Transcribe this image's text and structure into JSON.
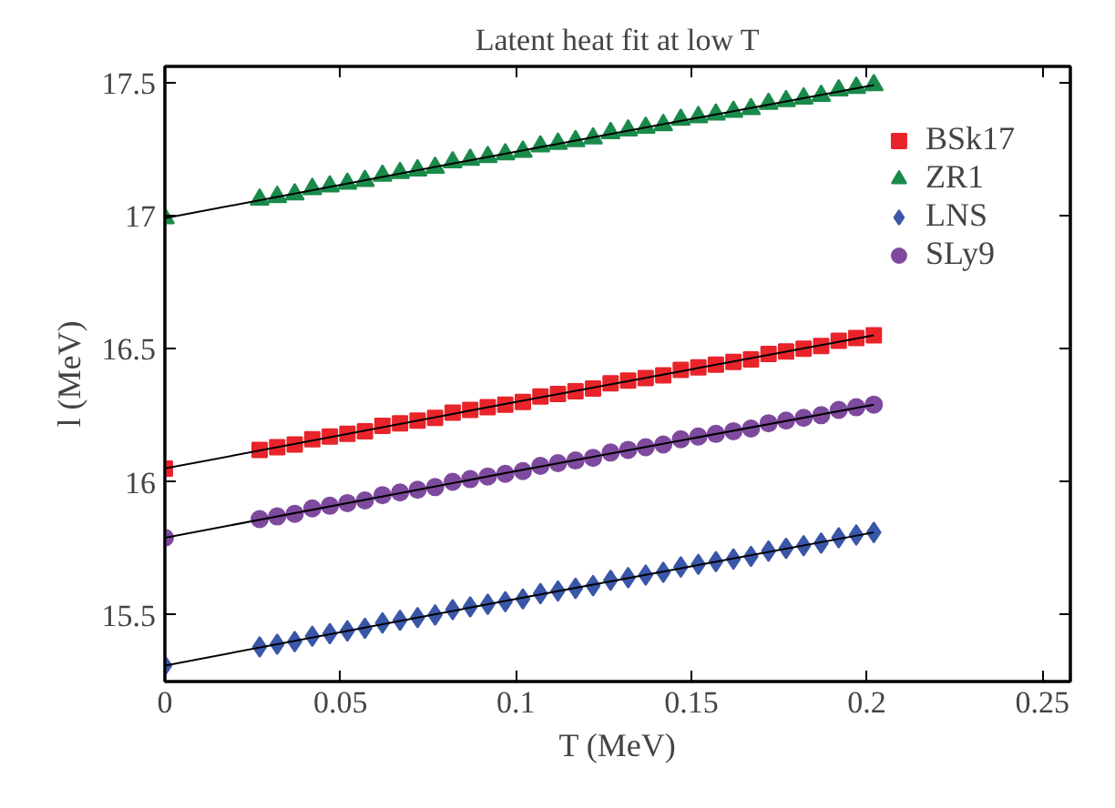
{
  "chart_data": {
    "type": "scatter",
    "title": "Latent heat fit at low T",
    "xlabel": "T (MeV)",
    "ylabel": "l (MeV)",
    "x": [
      0,
      0.027,
      0.032,
      0.037,
      0.042,
      0.047,
      0.052,
      0.057,
      0.062,
      0.067,
      0.072,
      0.077,
      0.082,
      0.087,
      0.092,
      0.097,
      0.102,
      0.107,
      0.112,
      0.117,
      0.122,
      0.127,
      0.132,
      0.137,
      0.142,
      0.147,
      0.152,
      0.157,
      0.162,
      0.167,
      0.172,
      0.177,
      0.182,
      0.187,
      0.192,
      0.197,
      0.202
    ],
    "xlim": [
      0,
      0.258
    ],
    "xticks": [
      0,
      0.05,
      0.1,
      0.15,
      0.2,
      0.25
    ],
    "ylim": [
      15.25,
      17.56
    ],
    "yticks": [
      15.5,
      16,
      16.5,
      17,
      17.5
    ],
    "legend": "top right",
    "grid": false,
    "series": [
      {
        "name": "BSk17",
        "color": "#e8242a",
        "marker": "square",
        "values": [
          16.05,
          16.12,
          16.13,
          16.14,
          16.16,
          16.17,
          16.18,
          16.19,
          16.21,
          16.22,
          16.23,
          16.24,
          16.26,
          16.27,
          16.28,
          16.29,
          16.3,
          16.32,
          16.33,
          16.34,
          16.35,
          16.37,
          16.38,
          16.39,
          16.4,
          16.42,
          16.43,
          16.44,
          16.45,
          16.46,
          16.48,
          16.49,
          16.5,
          16.51,
          16.53,
          16.54,
          16.55
        ]
      },
      {
        "name": "ZR1",
        "color": "#1a8a4a",
        "marker": "triangle",
        "values": [
          16.99,
          17.06,
          17.07,
          17.08,
          17.1,
          17.11,
          17.12,
          17.13,
          17.15,
          17.16,
          17.17,
          17.18,
          17.2,
          17.21,
          17.22,
          17.23,
          17.24,
          17.26,
          17.27,
          17.28,
          17.29,
          17.31,
          17.32,
          17.33,
          17.34,
          17.36,
          17.37,
          17.38,
          17.39,
          17.4,
          17.42,
          17.43,
          17.44,
          17.45,
          17.47,
          17.48,
          17.49
        ]
      },
      {
        "name": "LNS",
        "color": "#3a56a8",
        "marker": "diamond",
        "values": [
          15.31,
          15.38,
          15.39,
          15.4,
          15.42,
          15.43,
          15.44,
          15.45,
          15.47,
          15.48,
          15.49,
          15.5,
          15.52,
          15.53,
          15.54,
          15.55,
          15.56,
          15.58,
          15.59,
          15.6,
          15.61,
          15.63,
          15.64,
          15.65,
          15.66,
          15.68,
          15.69,
          15.7,
          15.71,
          15.72,
          15.74,
          15.75,
          15.76,
          15.77,
          15.79,
          15.8,
          15.81
        ]
      },
      {
        "name": "SLy9",
        "color": "#7e4a9e",
        "marker": "circle",
        "values": [
          15.79,
          15.86,
          15.87,
          15.88,
          15.9,
          15.91,
          15.92,
          15.93,
          15.95,
          15.96,
          15.97,
          15.98,
          16.0,
          16.01,
          16.02,
          16.03,
          16.04,
          16.06,
          16.07,
          16.08,
          16.09,
          16.11,
          16.12,
          16.13,
          16.14,
          16.16,
          16.17,
          16.18,
          16.19,
          16.2,
          16.22,
          16.23,
          16.24,
          16.25,
          16.27,
          16.28,
          16.29
        ]
      },
      {
        "type": "line",
        "color": "#000000",
        "x": [
          0.0,
          0.1,
          0.202
        ],
        "values": [
          16.05,
          16.3,
          16.55
        ]
      },
      {
        "type": "line",
        "color": "#000000",
        "x": [
          0.0,
          0.1,
          0.202
        ],
        "values": [
          16.99,
          17.24,
          17.49
        ]
      },
      {
        "type": "line",
        "color": "#000000",
        "x": [
          0.0,
          0.1,
          0.202
        ],
        "values": [
          15.31,
          15.56,
          15.81
        ]
      },
      {
        "type": "line",
        "color": "#000000",
        "x": [
          0.0,
          0.1,
          0.202
        ],
        "values": [
          15.79,
          16.04,
          16.29
        ]
      }
    ]
  }
}
